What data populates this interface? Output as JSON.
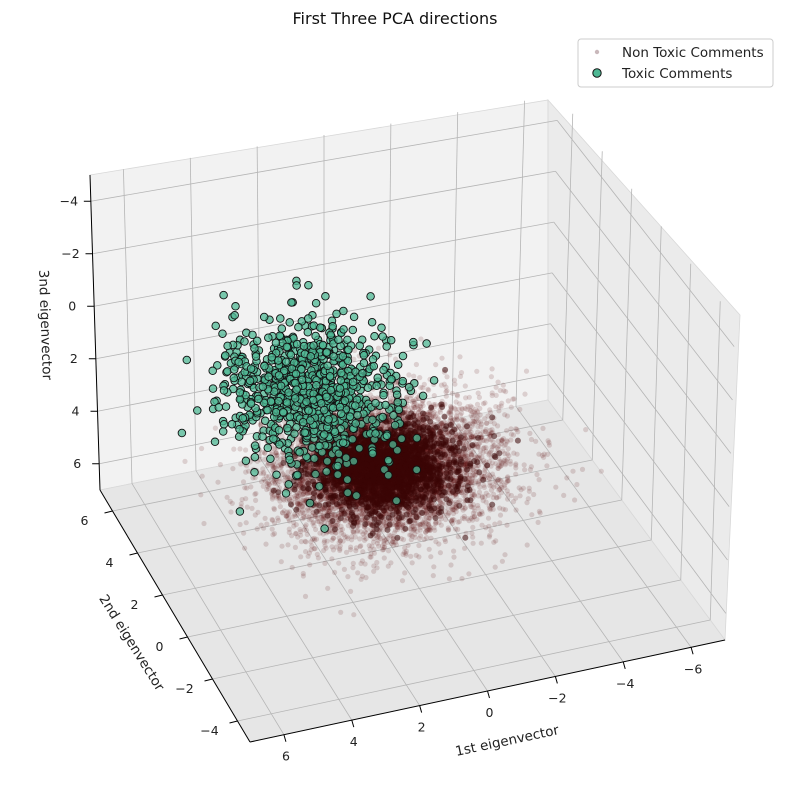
{
  "chart_data": {
    "type": "scatter",
    "projection": "3d",
    "title": "First Three PCA directions",
    "xlabel": "1st eigenvector",
    "ylabel": "2nd eigenvector",
    "zlabel": "3nd eigenvector",
    "xticks": [
      "6",
      "4",
      "2",
      "0",
      "−2",
      "−4",
      "−6"
    ],
    "yticks": [
      "6",
      "4",
      "2",
      "0",
      "−2",
      "−4"
    ],
    "zticks": [
      "−4",
      "−2",
      "0",
      "2",
      "4",
      "6"
    ],
    "xlim": [
      -7,
      7
    ],
    "ylim": [
      -5,
      7
    ],
    "zlim": [
      -5,
      7
    ],
    "zaxis_inverted": true,
    "grid": true,
    "legend_position": "top-right",
    "series": [
      {
        "name": "Non Toxic Comments",
        "color": "#5a0a0a",
        "alpha": 0.15,
        "marker": "small-dot",
        "distribution": {
          "center": [
            0.6,
            1.2,
            3.2
          ],
          "spread": [
            1.6,
            1.2,
            0.9
          ]
        }
      },
      {
        "name": "Toxic Comments",
        "color": "#4fb894",
        "edgecolor": "#111111",
        "marker": "circle",
        "distribution": {
          "center": [
            2.2,
            2.6,
            0.9
          ],
          "spread": [
            1.2,
            1.3,
            0.9
          ]
        }
      }
    ]
  }
}
